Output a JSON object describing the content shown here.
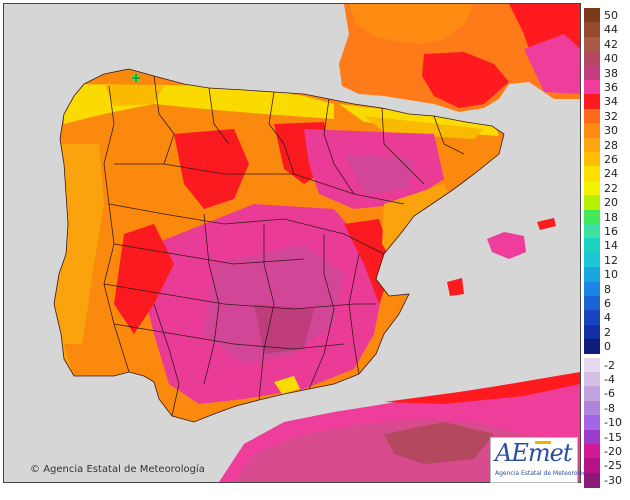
{
  "map": {
    "copyright": "Agencia Estatal de Meteorología",
    "logo_text": "AEmet",
    "logo_subtext": "Agencia Estatal de Meteorología",
    "copyright_icon": "copyright-icon"
  },
  "legend": {
    "positive": [
      {
        "label": "50",
        "color": "#7a3a18"
      },
      {
        "label": "44",
        "color": "#964a2c"
      },
      {
        "label": "42",
        "color": "#a85a46"
      },
      {
        "label": "40",
        "color": "#b4485e"
      },
      {
        "label": "38",
        "color": "#c23e7e"
      },
      {
        "label": "36",
        "color": "#ee3d9a"
      },
      {
        "label": "34",
        "color": "#ff1a20"
      },
      {
        "label": "32",
        "color": "#ff6a1a"
      },
      {
        "label": "30",
        "color": "#ff8c12"
      },
      {
        "label": "28",
        "color": "#ffa60e"
      },
      {
        "label": "26",
        "color": "#ffbe00"
      },
      {
        "label": "24",
        "color": "#ffdf00"
      },
      {
        "label": "22",
        "color": "#f2f200"
      },
      {
        "label": "20",
        "color": "#b4f000"
      },
      {
        "label": "18",
        "color": "#42ea5a"
      },
      {
        "label": "16",
        "color": "#3ce2a2"
      },
      {
        "label": "14",
        "color": "#1cd2c2"
      },
      {
        "label": "12",
        "color": "#20c6d6"
      },
      {
        "label": "10",
        "color": "#18a6de"
      },
      {
        "label": "8",
        "color": "#1a86e4"
      },
      {
        "label": "6",
        "color": "#1a62d6"
      },
      {
        "label": "4",
        "color": "#1844c2"
      },
      {
        "label": "2",
        "color": "#142ea6"
      },
      {
        "label": "0",
        "color": "#0e1c7a"
      }
    ],
    "negative": [
      {
        "label": "-2",
        "color": "#e6d8ee"
      },
      {
        "label": "-4",
        "color": "#d6c0e6"
      },
      {
        "label": "-6",
        "color": "#c4a4e0"
      },
      {
        "label": "-8",
        "color": "#b086da"
      },
      {
        "label": "-10",
        "color": "#a266e6"
      },
      {
        "label": "-15",
        "color": "#9a3ccc"
      },
      {
        "label": "-20",
        "color": "#d01a96"
      },
      {
        "label": "-25",
        "color": "#b61486"
      },
      {
        "label": "-30",
        "color": "#8a1a7a"
      }
    ]
  }
}
